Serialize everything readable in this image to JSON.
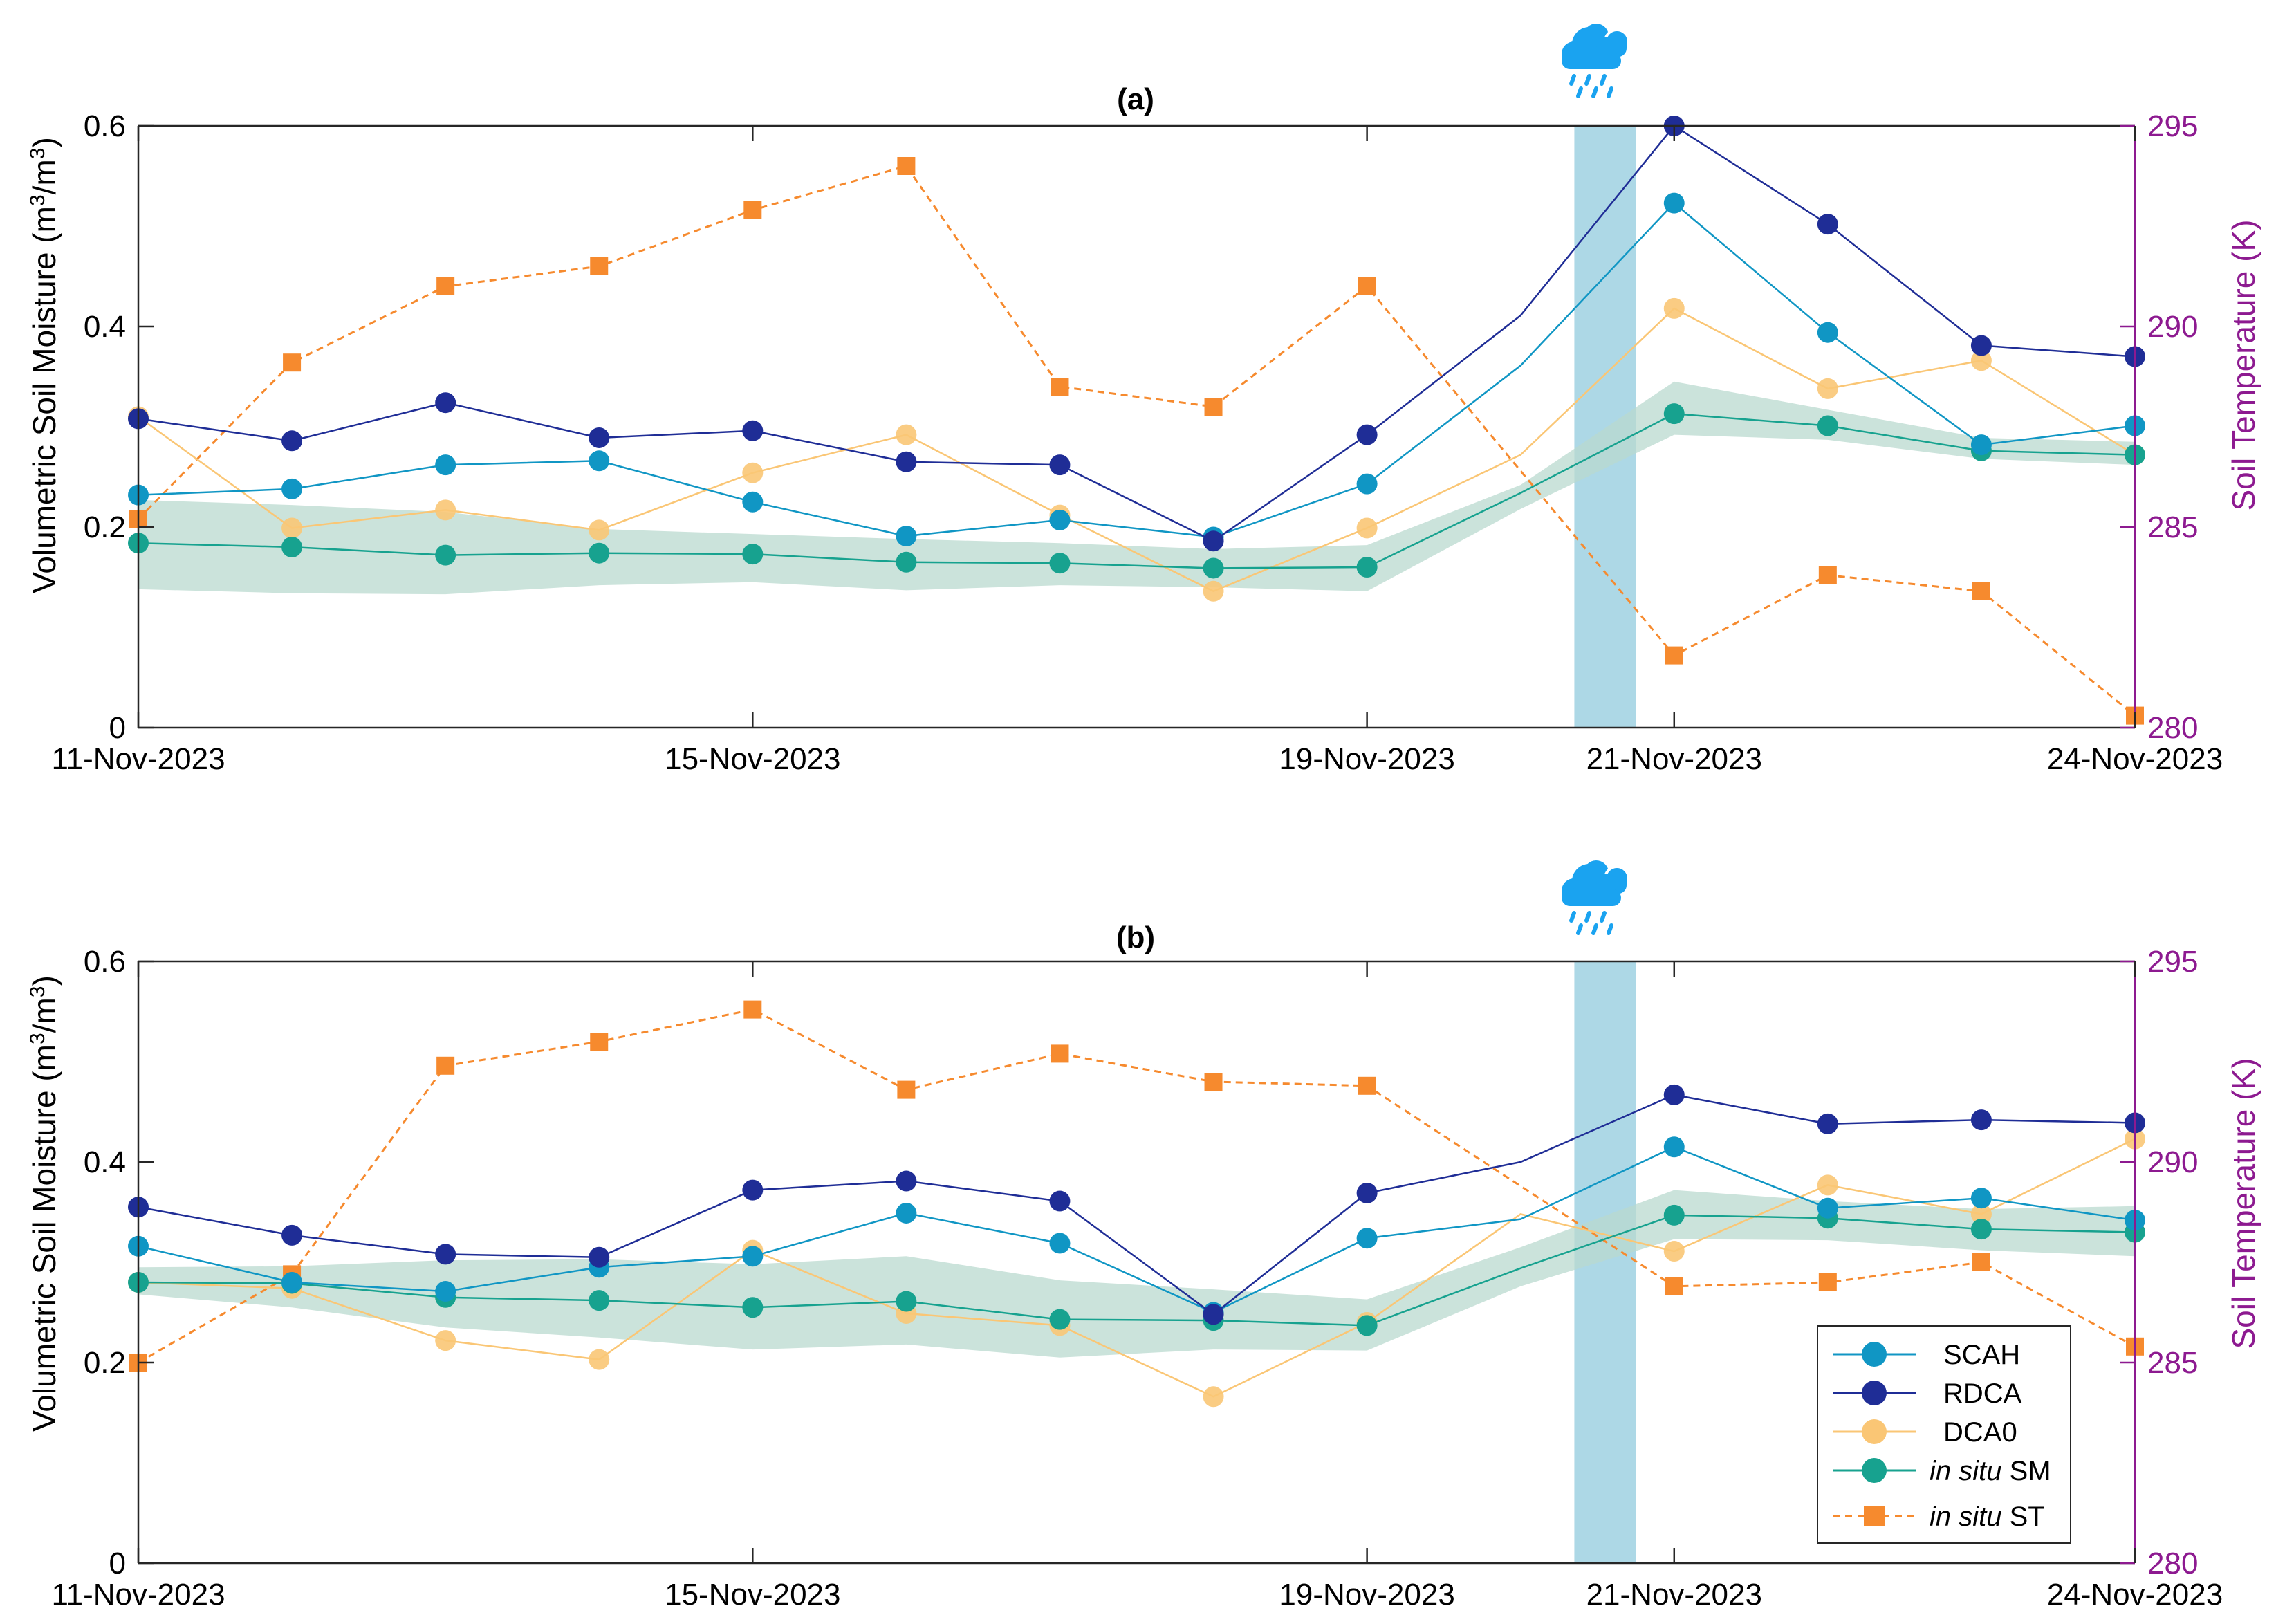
{
  "figure": {
    "colors": {
      "SCAH": "#1096c4",
      "RDCA": "#1f2d96",
      "DCA0": "#fac675",
      "SM": "#17a28f",
      "ST": "#f68a2e",
      "band": "#b9d9cf",
      "rain": "#add8e6",
      "rightAxis": "#8d1a90",
      "cloud": "#1aa3f0"
    },
    "legend": {
      "SCAH": "SCAH",
      "RDCA": "RDCA",
      "DCA0": "DCA0",
      "sm_italic": "in situ",
      "sm_suffix": " SM",
      "st_italic": "in situ",
      "st_suffix": " ST"
    },
    "rain_icon": "rain-cloud-icon"
  },
  "chart_data": [
    {
      "type": "line",
      "title": "(a)",
      "ylabel": "Volumetric Soil Moisture (m³/m³)",
      "ylabel_left": "Volumetric Soil Moisture (m",
      "ylabel_mid": "/m",
      "ylabel_right": ")",
      "ylabel_sup": "3",
      "y2label": "Soil Temperature (K)",
      "ylim": [
        0,
        0.6
      ],
      "y2lim": [
        280,
        295
      ],
      "yticks": [
        "0",
        "0.2",
        "0.4",
        "0.6"
      ],
      "y2ticks": [
        "280",
        "285",
        "290",
        "295"
      ],
      "xlim": [
        0,
        13
      ],
      "xticks": [
        0,
        4,
        8,
        10,
        13
      ],
      "xticklabels": [
        "11-Nov-2023",
        "15-Nov-2023",
        "19-Nov-2023",
        "21-Nov-2023",
        "24-Nov-2023"
      ],
      "rain_period": [
        9.35,
        9.75
      ],
      "series": [
        {
          "name": "SCAH",
          "x": [
            0,
            1,
            2,
            3,
            4,
            5,
            6,
            7,
            8,
            9,
            10,
            11,
            12,
            13
          ],
          "values": [
            0.232,
            0.238,
            0.262,
            0.266,
            0.225,
            0.191,
            0.207,
            0.19,
            0.243,
            0.361,
            0.523,
            0.394,
            0.282,
            0.301
          ],
          "markers": [
            0,
            1,
            2,
            3,
            4,
            5,
            6,
            7,
            8,
            10,
            11,
            12,
            13
          ]
        },
        {
          "name": "RDCA",
          "x": [
            0,
            1,
            2,
            3,
            4,
            5,
            6,
            7,
            8,
            9,
            10,
            11,
            12,
            13
          ],
          "values": [
            0.308,
            0.286,
            0.324,
            0.289,
            0.296,
            0.265,
            0.262,
            0.186,
            0.292,
            0.411,
            0.6,
            0.502,
            0.381,
            0.37
          ],
          "markers": [
            0,
            1,
            2,
            3,
            4,
            5,
            6,
            7,
            8,
            10,
            11,
            12,
            13
          ]
        },
        {
          "name": "DCA0",
          "x": [
            0,
            1,
            2,
            3,
            4,
            5,
            6,
            7,
            8,
            9,
            10,
            11,
            12,
            13
          ],
          "values": [
            0.31,
            0.199,
            0.217,
            0.197,
            0.254,
            0.292,
            0.212,
            0.136,
            0.199,
            0.272,
            0.418,
            0.338,
            0.366,
            0.272
          ],
          "markers": [
            0,
            1,
            2,
            3,
            4,
            5,
            6,
            7,
            8,
            10,
            11,
            12,
            13
          ]
        },
        {
          "name": "in situ SM",
          "x": [
            0,
            1,
            2,
            3,
            4,
            5,
            6,
            7,
            8,
            9,
            10,
            11,
            12,
            13
          ],
          "values": [
            0.184,
            0.18,
            0.172,
            0.174,
            0.173,
            0.165,
            0.164,
            0.159,
            0.16,
            0.234,
            0.313,
            0.301,
            0.276,
            0.272
          ],
          "markers": [
            0,
            1,
            2,
            3,
            4,
            5,
            6,
            7,
            8,
            10,
            11,
            12,
            13
          ],
          "band_low": [
            0.138,
            0.134,
            0.133,
            0.142,
            0.145,
            0.137,
            0.142,
            0.14,
            0.136,
            0.218,
            0.292,
            0.287,
            0.268,
            0.262
          ],
          "band_high": [
            0.227,
            0.222,
            0.215,
            0.198,
            0.193,
            0.188,
            0.184,
            0.178,
            0.182,
            0.242,
            0.345,
            0.317,
            0.289,
            0.285
          ]
        },
        {
          "name": "in situ ST",
          "axis": "right",
          "x": [
            0,
            1,
            2,
            3,
            4,
            5,
            6,
            7,
            8,
            10,
            11,
            12,
            13
          ],
          "values": [
            285.2,
            289.1,
            291.0,
            291.5,
            292.9,
            294.0,
            288.5,
            288.0,
            291.0,
            281.8,
            283.8,
            283.4,
            280.3
          ]
        }
      ]
    },
    {
      "type": "line",
      "title": "(b)",
      "ylabel": "Volumetric Soil Moisture (m³/m³)",
      "ylabel_left": "Volumetric Soil Moisture (m",
      "ylabel_mid": "/m",
      "ylabel_right": ")",
      "ylabel_sup": "3",
      "y2label": "Soil Temperature (K)",
      "ylim": [
        0,
        0.6
      ],
      "y2lim": [
        280,
        295
      ],
      "yticks": [
        "0",
        "0.2",
        "0.4",
        "0.6"
      ],
      "y2ticks": [
        "280",
        "285",
        "290",
        "295"
      ],
      "xlim": [
        0,
        13
      ],
      "xticks": [
        0,
        4,
        8,
        10,
        13
      ],
      "xticklabels": [
        "11-Nov-2023",
        "15-Nov-2023",
        "19-Nov-2023",
        "21-Nov-2023",
        "24-Nov-2023"
      ],
      "rain_period": [
        9.35,
        9.75
      ],
      "series": [
        {
          "name": "SCAH",
          "x": [
            0,
            1,
            2,
            3,
            4,
            5,
            6,
            7,
            8,
            9,
            10,
            11,
            12,
            13
          ],
          "values": [
            0.316,
            0.28,
            0.271,
            0.295,
            0.306,
            0.349,
            0.319,
            0.25,
            0.324,
            0.343,
            0.415,
            0.354,
            0.364,
            0.342
          ],
          "markers": [
            0,
            1,
            2,
            3,
            4,
            5,
            6,
            7,
            8,
            10,
            11,
            12,
            13
          ]
        },
        {
          "name": "RDCA",
          "x": [
            0,
            1,
            2,
            3,
            4,
            5,
            6,
            7,
            8,
            9,
            10,
            11,
            12,
            13
          ],
          "values": [
            0.355,
            0.327,
            0.308,
            0.305,
            0.372,
            0.381,
            0.361,
            0.248,
            0.369,
            0.4,
            0.467,
            0.438,
            0.442,
            0.439
          ],
          "markers": [
            0,
            1,
            2,
            3,
            4,
            5,
            6,
            7,
            8,
            10,
            11,
            12,
            13
          ]
        },
        {
          "name": "DCA0",
          "x": [
            0,
            1,
            2,
            3,
            4,
            5,
            6,
            7,
            8,
            9,
            10,
            11,
            12,
            13
          ],
          "values": [
            0.28,
            0.274,
            0.222,
            0.203,
            0.312,
            0.249,
            0.237,
            0.166,
            0.24,
            0.348,
            0.311,
            0.377,
            0.348,
            0.423
          ],
          "markers": [
            0,
            1,
            2,
            3,
            4,
            5,
            6,
            7,
            8,
            10,
            11,
            12,
            13
          ]
        },
        {
          "name": "in situ SM",
          "x": [
            0,
            1,
            2,
            3,
            4,
            5,
            6,
            7,
            8,
            9,
            10,
            11,
            12,
            13
          ],
          "values": [
            0.28,
            0.279,
            0.265,
            0.262,
            0.255,
            0.261,
            0.243,
            0.242,
            0.237,
            0.294,
            0.347,
            0.344,
            0.333,
            0.33
          ],
          "markers": [
            0,
            1,
            2,
            3,
            4,
            5,
            6,
            7,
            8,
            10,
            11,
            12,
            13
          ],
          "band_low": [
            0.268,
            0.255,
            0.235,
            0.225,
            0.213,
            0.218,
            0.205,
            0.213,
            0.212,
            0.276,
            0.323,
            0.322,
            0.312,
            0.306
          ],
          "band_high": [
            0.295,
            0.296,
            0.302,
            0.303,
            0.298,
            0.306,
            0.282,
            0.273,
            0.263,
            0.315,
            0.372,
            0.361,
            0.353,
            0.356
          ]
        },
        {
          "name": "in situ ST",
          "axis": "right",
          "x": [
            0,
            1,
            2,
            3,
            4,
            5,
            6,
            7,
            8,
            10,
            11,
            12,
            13
          ],
          "values": [
            285.0,
            287.2,
            292.4,
            293.0,
            293.8,
            291.8,
            292.7,
            292.0,
            291.9,
            286.9,
            287.0,
            287.5,
            285.4
          ]
        }
      ]
    }
  ]
}
